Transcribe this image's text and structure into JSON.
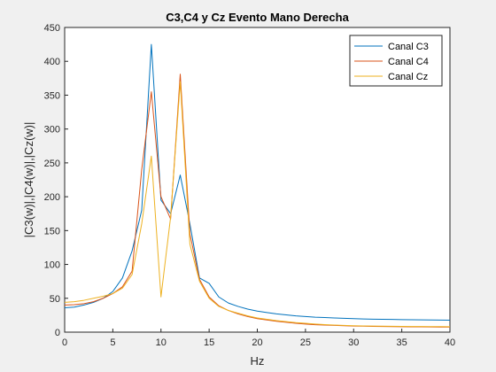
{
  "chart_data": {
    "type": "line",
    "title": "C3,C4 y Cz Evento Mano Derecha",
    "xlabel": "Hz",
    "ylabel": "|C3(w)|,|C4(w)|,|Cz(w)|",
    "xlim": [
      0,
      40
    ],
    "ylim": [
      0,
      450
    ],
    "xticks": [
      0,
      5,
      10,
      15,
      20,
      25,
      30,
      35,
      40
    ],
    "yticks": [
      0,
      50,
      100,
      150,
      200,
      250,
      300,
      350,
      400,
      450
    ],
    "grid": false,
    "legend_position": "top-right",
    "x": [
      0,
      1,
      2,
      3,
      4,
      5,
      6,
      7,
      8,
      9,
      10,
      11,
      12,
      13,
      14,
      15,
      16,
      17,
      18,
      19,
      20,
      21,
      22,
      23,
      24,
      25,
      26,
      27,
      28,
      29,
      30,
      31,
      32,
      33,
      34,
      35,
      36,
      37,
      38,
      39,
      40
    ],
    "series": [
      {
        "name": "Canal C3",
        "color": "#0072BD",
        "values": [
          36,
          37,
          40,
          44,
          50,
          60,
          80,
          120,
          180,
          425,
          195,
          175,
          232,
          160,
          80,
          72,
          52,
          43,
          38,
          34,
          31,
          29,
          27,
          25.5,
          24,
          23,
          22,
          21.5,
          21,
          20.5,
          20,
          19.5,
          19.2,
          19,
          18.8,
          18.5,
          18.3,
          18.1,
          18,
          17.8,
          17.6
        ]
      },
      {
        "name": "Canal C4",
        "color": "#D95319",
        "values": [
          40,
          40.5,
          42,
          45,
          50,
          57,
          67,
          90,
          240,
          355,
          200,
          167,
          381,
          145,
          78,
          52,
          39,
          32,
          27,
          23,
          20,
          18,
          16,
          14.5,
          13,
          12,
          11,
          10.5,
          10,
          9.5,
          9,
          8.8,
          8.5,
          8.3,
          8.1,
          8,
          7.9,
          7.8,
          7.7,
          7.6,
          7.5
        ]
      },
      {
        "name": "Canal Cz",
        "color": "#EDB120",
        "values": [
          44,
          45,
          47,
          50,
          53,
          57,
          65,
          85,
          160,
          260,
          52,
          170,
          370,
          130,
          75,
          50,
          38,
          32,
          28,
          24,
          21,
          19,
          17,
          15.5,
          14,
          13,
          12,
          11.2,
          10.5,
          10,
          9.5,
          9.2,
          9,
          8.8,
          8.6,
          8.5,
          8.4,
          8.3,
          8.2,
          8.1,
          8
        ]
      }
    ]
  }
}
